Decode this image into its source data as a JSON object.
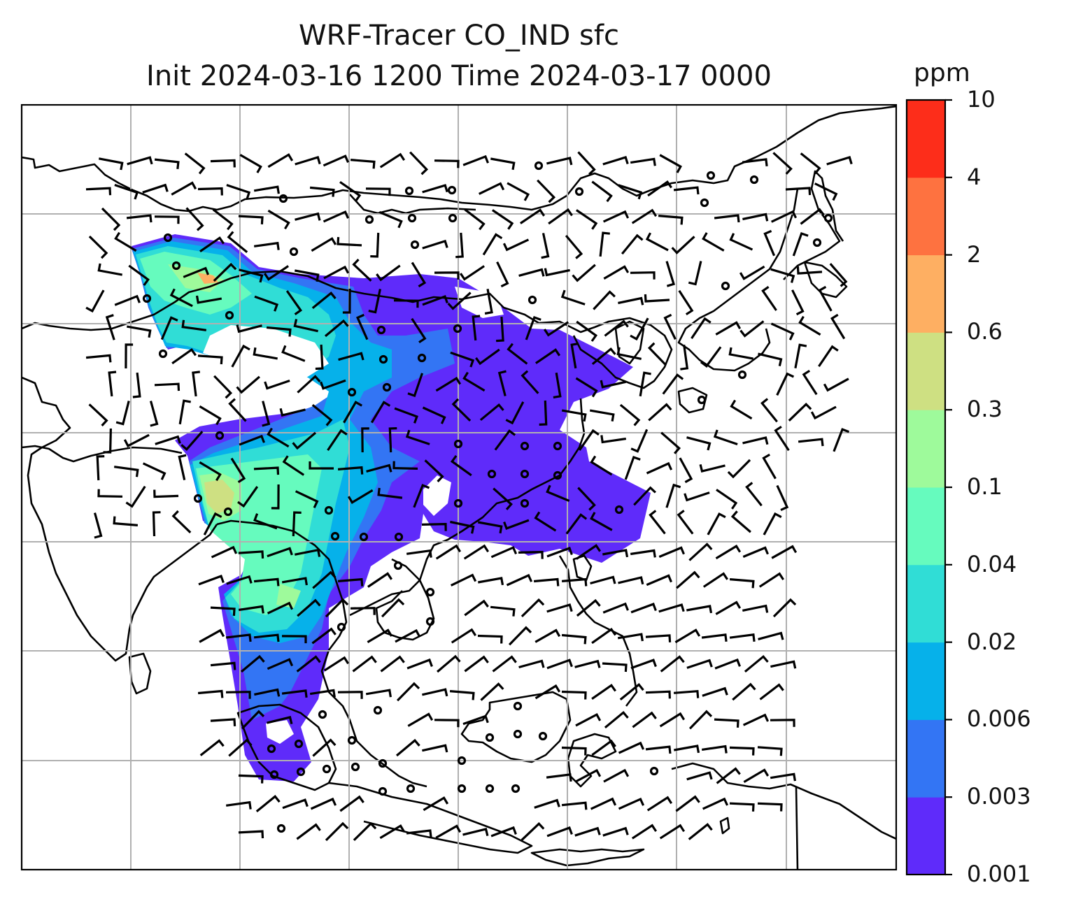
{
  "title": "WRF-Tracer CO_IND sfc",
  "subtitle": "Init 2024-03-16 1200 Time 2024-03-17 0000",
  "colorbar": {
    "units": "ppm",
    "levels": [
      "0.001",
      "0.003",
      "0.006",
      "0.02",
      "0.04",
      "0.1",
      "0.3",
      "0.6",
      "2",
      "4",
      "10"
    ],
    "colors": [
      "#5f2bfa",
      "#3375f4",
      "#06b1ea",
      "#30ddd6",
      "#66fbbe",
      "#9efa9b",
      "#cee082",
      "#feaf62",
      "#fe7240",
      "#fd2d1a"
    ]
  },
  "map": {
    "colors": {
      "land_outline": "#000000",
      "grid": "#b0b0b0",
      "barb": "#000000"
    },
    "field_bands": [
      "#5f2bfa",
      "#3375f4",
      "#06b1ea",
      "#30ddd6",
      "#66fbbe",
      "#9efa9b",
      "#cee082",
      "#feaf62"
    ]
  }
}
